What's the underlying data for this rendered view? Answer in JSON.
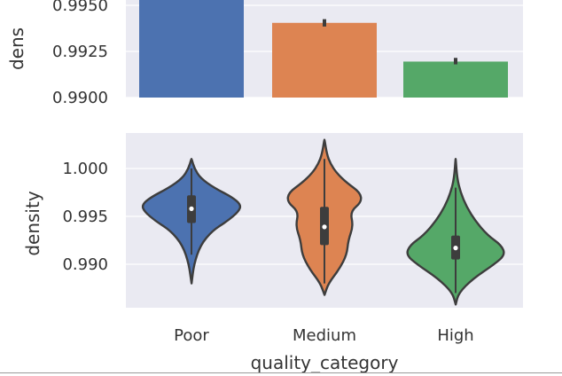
{
  "colors": {
    "panel_bg": "#eaeaf2",
    "grid": "#ffffff",
    "outline": "#3d3d3d",
    "series": [
      "#4c72b0",
      "#dd8452",
      "#55a868"
    ]
  },
  "chart_data": [
    {
      "type": "bar",
      "categories": [
        "Poor",
        "Medium",
        "High"
      ],
      "values": [
        0.9955,
        0.99405,
        0.99195
      ],
      "error_low": [
        null,
        0.99385,
        0.9918
      ],
      "error_high": [
        null,
        0.99425,
        0.99215
      ],
      "ylabel": "dens",
      "ylim": [
        0.99,
        0.995
      ],
      "yticks": [
        0.99,
        0.9925,
        0.995
      ],
      "ytick_labels": [
        "0.9900",
        "0.9925",
        "0.9950"
      ],
      "grid": true
    },
    {
      "type": "violin",
      "categories": [
        "Poor",
        "Medium",
        "High"
      ],
      "xlabel": "quality_category",
      "ylabel": "density",
      "ylim": [
        0.9876,
        1.0016
      ],
      "yticks": [
        0.99,
        0.995,
        1.0
      ],
      "ytick_labels": [
        "0.990",
        "0.995",
        "1.000"
      ],
      "grid": true,
      "violins": [
        {
          "min": 0.988,
          "max": 1.001,
          "q1": 0.9943,
          "median": 0.9958,
          "q3": 0.9972,
          "whisker_low": 0.991,
          "whisker_high": 1.0,
          "profile": [
            [
              0.988,
              0.002
            ],
            [
              0.99,
              0.05
            ],
            [
              0.992,
              0.18
            ],
            [
              0.9935,
              0.42
            ],
            [
              0.9945,
              0.72
            ],
            [
              0.9955,
              0.95
            ],
            [
              0.9962,
              1.0
            ],
            [
              0.997,
              0.82
            ],
            [
              0.998,
              0.45
            ],
            [
              0.999,
              0.18
            ],
            [
              1.0,
              0.06
            ],
            [
              1.001,
              0.002
            ]
          ]
        },
        {
          "min": 0.9868,
          "max": 1.003,
          "q1": 0.992,
          "median": 0.9939,
          "q3": 0.996,
          "whisker_low": 0.988,
          "whisker_high": 1.001,
          "profile": [
            [
              0.9868,
              0.002
            ],
            [
              0.988,
              0.08
            ],
            [
              0.9895,
              0.3
            ],
            [
              0.991,
              0.45
            ],
            [
              0.9925,
              0.48
            ],
            [
              0.994,
              0.58
            ],
            [
              0.9955,
              0.52
            ],
            [
              0.9965,
              0.75
            ],
            [
              0.9975,
              0.72
            ],
            [
              0.9985,
              0.45
            ],
            [
              0.9995,
              0.25
            ],
            [
              1.0005,
              0.12
            ],
            [
              1.0015,
              0.05
            ],
            [
              1.003,
              0.002
            ]
          ]
        },
        {
          "min": 0.9858,
          "max": 1.001,
          "q1": 0.9905,
          "median": 0.9917,
          "q3": 0.993,
          "whisker_low": 0.987,
          "whisker_high": 0.998,
          "profile": [
            [
              0.9858,
              0.002
            ],
            [
              0.987,
              0.06
            ],
            [
              0.9885,
              0.35
            ],
            [
              0.99,
              0.78
            ],
            [
              0.991,
              1.0
            ],
            [
              0.992,
              0.92
            ],
            [
              0.993,
              0.65
            ],
            [
              0.9945,
              0.4
            ],
            [
              0.996,
              0.22
            ],
            [
              0.9975,
              0.1
            ],
            [
              0.999,
              0.03
            ],
            [
              1.001,
              0.002
            ]
          ]
        }
      ]
    }
  ]
}
